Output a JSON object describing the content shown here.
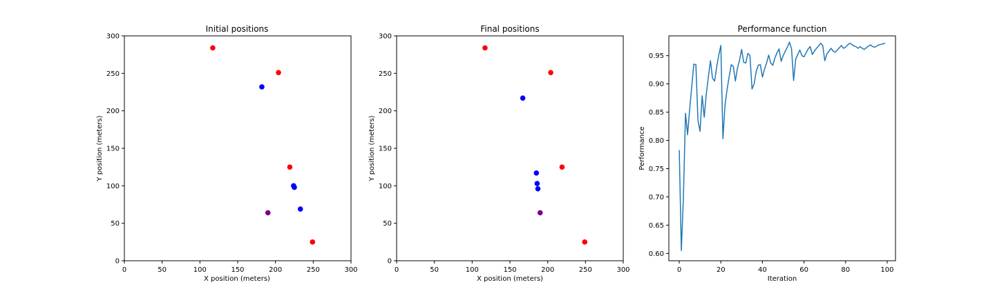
{
  "chart_data": [
    {
      "type": "scatter",
      "title": "Initial positions",
      "xlabel": "X position (meters)",
      "ylabel": "Y position (meters)",
      "xlim": [
        0,
        300
      ],
      "ylim": [
        0,
        300
      ],
      "xticks": [
        0,
        50,
        100,
        150,
        200,
        250,
        300
      ],
      "yticks": [
        0,
        50,
        100,
        150,
        200,
        250,
        300
      ],
      "grid": false,
      "points": [
        {
          "x": 117,
          "y": 284,
          "color": "#ff0000"
        },
        {
          "x": 204,
          "y": 251,
          "color": "#ff0000"
        },
        {
          "x": 182,
          "y": 232,
          "color": "#0000ff"
        },
        {
          "x": 219,
          "y": 125,
          "color": "#ff0000"
        },
        {
          "x": 224,
          "y": 100,
          "color": "#0000ff"
        },
        {
          "x": 225,
          "y": 98,
          "color": "#0000ff"
        },
        {
          "x": 233,
          "y": 69,
          "color": "#0000ff"
        },
        {
          "x": 190,
          "y": 64,
          "color": "#800080"
        },
        {
          "x": 249,
          "y": 25,
          "color": "#ff0000"
        }
      ]
    },
    {
      "type": "scatter",
      "title": "Final positions",
      "xlabel": "X position (meters)",
      "ylabel": "Y position (meters)",
      "xlim": [
        0,
        300
      ],
      "ylim": [
        0,
        300
      ],
      "xticks": [
        0,
        50,
        100,
        150,
        200,
        250,
        300
      ],
      "yticks": [
        0,
        50,
        100,
        150,
        200,
        250,
        300
      ],
      "grid": false,
      "points": [
        {
          "x": 117,
          "y": 284,
          "color": "#ff0000"
        },
        {
          "x": 204,
          "y": 251,
          "color": "#ff0000"
        },
        {
          "x": 167,
          "y": 217,
          "color": "#0000ff"
        },
        {
          "x": 219,
          "y": 125,
          "color": "#ff0000"
        },
        {
          "x": 185,
          "y": 117,
          "color": "#0000ff"
        },
        {
          "x": 186,
          "y": 103,
          "color": "#0000ff"
        },
        {
          "x": 187,
          "y": 96,
          "color": "#0000ff"
        },
        {
          "x": 190,
          "y": 64,
          "color": "#800080"
        },
        {
          "x": 249,
          "y": 25,
          "color": "#ff0000"
        }
      ]
    },
    {
      "type": "line",
      "title": "Performance function",
      "xlabel": "Iteration",
      "ylabel": "Performance",
      "xlim": [
        -5,
        104
      ],
      "ylim": [
        0.587,
        0.985
      ],
      "xticks": [
        0,
        20,
        40,
        60,
        80,
        100
      ],
      "yticks": [
        0.6,
        0.65,
        0.7,
        0.75,
        0.8,
        0.85,
        0.9,
        0.95
      ],
      "ytick_labels": [
        "0.60",
        "0.65",
        "0.70",
        "0.75",
        "0.80",
        "0.85",
        "0.90",
        "0.95"
      ],
      "grid": false,
      "series": [
        {
          "color": "#1f77b4",
          "x": [
            0,
            1,
            2,
            3,
            4,
            5,
            6,
            7,
            8,
            9,
            10,
            11,
            12,
            13,
            14,
            15,
            16,
            17,
            18,
            19,
            20,
            21,
            22,
            23,
            24,
            25,
            26,
            27,
            28,
            29,
            30,
            31,
            32,
            33,
            34,
            35,
            36,
            37,
            38,
            39,
            40,
            41,
            42,
            43,
            44,
            45,
            46,
            47,
            48,
            49,
            50,
            51,
            52,
            53,
            54,
            55,
            56,
            57,
            58,
            59,
            60,
            61,
            62,
            63,
            64,
            65,
            66,
            67,
            68,
            69,
            70,
            71,
            72,
            73,
            74,
            75,
            76,
            77,
            78,
            79,
            80,
            81,
            82,
            83,
            84,
            85,
            86,
            87,
            88,
            89,
            90,
            91,
            92,
            93,
            94,
            95,
            96,
            97,
            98,
            99
          ],
          "values": [
            0.783,
            0.605,
            0.7,
            0.848,
            0.81,
            0.855,
            0.895,
            0.935,
            0.934,
            0.835,
            0.816,
            0.879,
            0.841,
            0.882,
            0.912,
            0.941,
            0.91,
            0.905,
            0.93,
            0.951,
            0.968,
            0.803,
            0.862,
            0.89,
            0.913,
            0.934,
            0.931,
            0.905,
            0.928,
            0.942,
            0.961,
            0.938,
            0.937,
            0.954,
            0.95,
            0.891,
            0.9,
            0.922,
            0.933,
            0.934,
            0.912,
            0.926,
            0.937,
            0.951,
            0.937,
            0.933,
            0.946,
            0.955,
            0.962,
            0.94,
            0.95,
            0.958,
            0.965,
            0.974,
            0.962,
            0.906,
            0.944,
            0.952,
            0.96,
            0.95,
            0.948,
            0.955,
            0.962,
            0.966,
            0.952,
            0.958,
            0.963,
            0.967,
            0.972,
            0.968,
            0.941,
            0.953,
            0.958,
            0.963,
            0.958,
            0.956,
            0.96,
            0.964,
            0.968,
            0.963,
            0.965,
            0.969,
            0.972,
            0.97,
            0.967,
            0.966,
            0.963,
            0.966,
            0.963,
            0.961,
            0.964,
            0.967,
            0.969,
            0.966,
            0.965,
            0.967,
            0.969,
            0.97,
            0.971,
            0.972
          ]
        }
      ]
    }
  ]
}
